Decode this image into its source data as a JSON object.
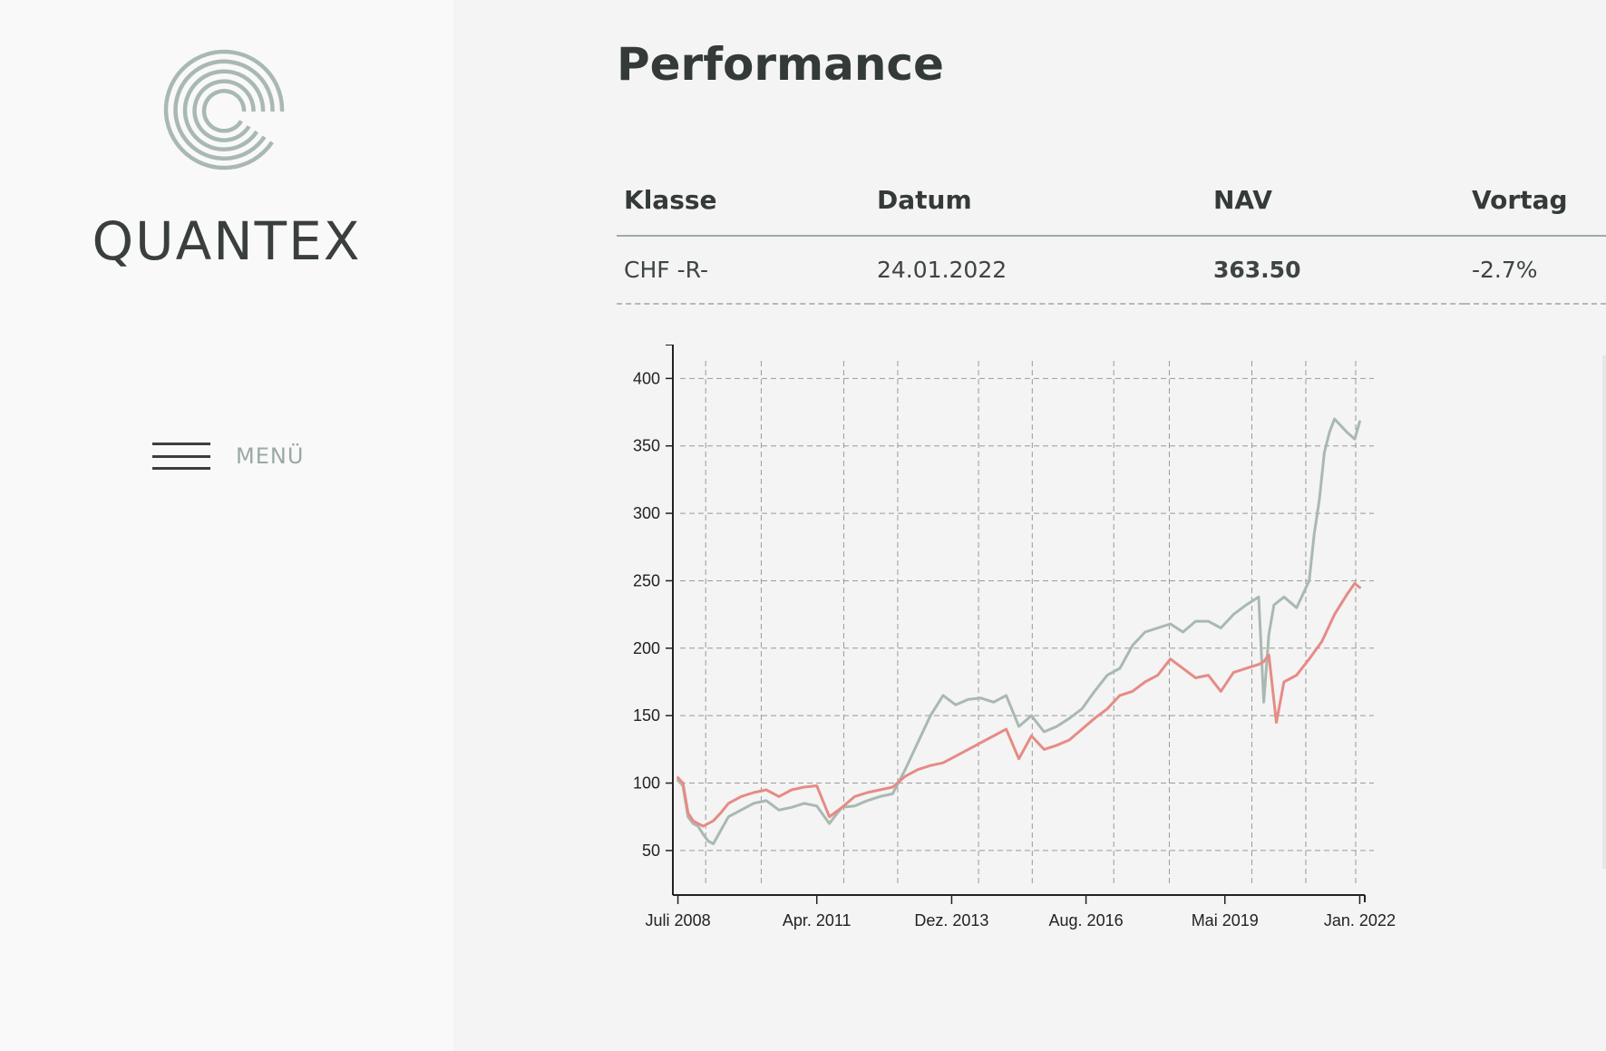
{
  "brand": {
    "name": "QUANTEX",
    "logo_icon": "concentric-arcs-logo-icon",
    "colors": {
      "logo": "#a9b8b2",
      "accent": "#9aaca6"
    }
  },
  "sidebar": {
    "menu_icon": "hamburger-icon",
    "menu_label": "MENÜ"
  },
  "main": {
    "title": "Performance",
    "table": {
      "headers": [
        "Klasse",
        "Datum",
        "NAV",
        "Vortag"
      ],
      "rows": [
        {
          "klasse": "CHF -R-",
          "datum": "24.01.2022",
          "nav": "363.50",
          "vortag": "-2.7%"
        }
      ]
    }
  },
  "chart_data": {
    "type": "line",
    "x_tick_labels": [
      "Juli 2008",
      "Apr. 2011",
      "Dez. 2013",
      "Aug. 2016",
      "Mai 2019",
      "Jan. 2022"
    ],
    "x_ticks": [
      2008.5,
      2011.25,
      2013.92,
      2016.58,
      2019.33,
      2022.0
    ],
    "xlim": [
      2008.4,
      2022.1
    ],
    "ylim": [
      17,
      413
    ],
    "y_ticks": [
      50,
      100,
      150,
      200,
      250,
      300,
      350,
      400
    ],
    "grid": true,
    "series": [
      {
        "color": "#a9b9b2",
        "x": [
          2008.5,
          2008.6,
          2008.7,
          2008.8,
          2008.9,
          2009.0,
          2009.1,
          2009.2,
          2009.35,
          2009.5,
          2009.75,
          2010.0,
          2010.25,
          2010.5,
          2010.75,
          2011.0,
          2011.25,
          2011.5,
          2011.6,
          2011.75,
          2012.0,
          2012.25,
          2012.5,
          2012.75,
          2013.0,
          2013.25,
          2013.5,
          2013.75,
          2014.0,
          2014.25,
          2014.5,
          2014.75,
          2015.0,
          2015.25,
          2015.5,
          2015.75,
          2016.0,
          2016.25,
          2016.5,
          2016.75,
          2017.0,
          2017.25,
          2017.5,
          2017.75,
          2018.0,
          2018.25,
          2018.5,
          2018.75,
          2019.0,
          2019.25,
          2019.5,
          2019.75,
          2020.0,
          2020.1,
          2020.2,
          2020.3,
          2020.5,
          2020.75,
          2021.0,
          2021.1,
          2021.2,
          2021.3,
          2021.4,
          2021.5,
          2021.75,
          2021.9,
          2022.0
        ],
        "y": [
          102,
          98,
          75,
          70,
          68,
          62,
          57,
          55,
          65,
          75,
          80,
          85,
          87,
          80,
          82,
          85,
          83,
          70,
          75,
          82,
          83,
          87,
          90,
          92,
          110,
          130,
          150,
          165,
          158,
          162,
          163,
          160,
          165,
          142,
          150,
          138,
          142,
          148,
          155,
          168,
          180,
          185,
          202,
          212,
          215,
          218,
          212,
          220,
          220,
          215,
          225,
          232,
          238,
          160,
          210,
          232,
          238,
          230,
          250,
          285,
          310,
          345,
          360,
          370,
          360,
          355,
          368
        ]
      },
      {
        "color": "#e68b86",
        "x": [
          2008.5,
          2008.6,
          2008.7,
          2008.8,
          2008.9,
          2009.0,
          2009.2,
          2009.35,
          2009.5,
          2009.75,
          2010.0,
          2010.25,
          2010.5,
          2010.75,
          2011.0,
          2011.25,
          2011.5,
          2011.75,
          2012.0,
          2012.25,
          2012.5,
          2012.75,
          2013.0,
          2013.25,
          2013.5,
          2013.75,
          2014.0,
          2014.25,
          2014.5,
          2014.75,
          2015.0,
          2015.25,
          2015.5,
          2015.75,
          2016.0,
          2016.25,
          2016.5,
          2016.75,
          2017.0,
          2017.25,
          2017.5,
          2017.75,
          2018.0,
          2018.25,
          2018.5,
          2018.75,
          2019.0,
          2019.25,
          2019.5,
          2019.75,
          2020.0,
          2020.1,
          2020.2,
          2020.35,
          2020.5,
          2020.75,
          2021.0,
          2021.25,
          2021.5,
          2021.75,
          2021.9,
          2022.0
        ],
        "y": [
          104,
          100,
          78,
          72,
          70,
          68,
          72,
          78,
          85,
          90,
          93,
          95,
          90,
          95,
          97,
          98,
          75,
          82,
          90,
          93,
          95,
          97,
          105,
          110,
          113,
          115,
          120,
          125,
          130,
          135,
          140,
          118,
          135,
          125,
          128,
          132,
          140,
          148,
          155,
          165,
          168,
          175,
          180,
          192,
          185,
          178,
          180,
          168,
          182,
          185,
          188,
          190,
          195,
          145,
          175,
          180,
          192,
          205,
          225,
          240,
          248,
          245
        ]
      }
    ]
  }
}
